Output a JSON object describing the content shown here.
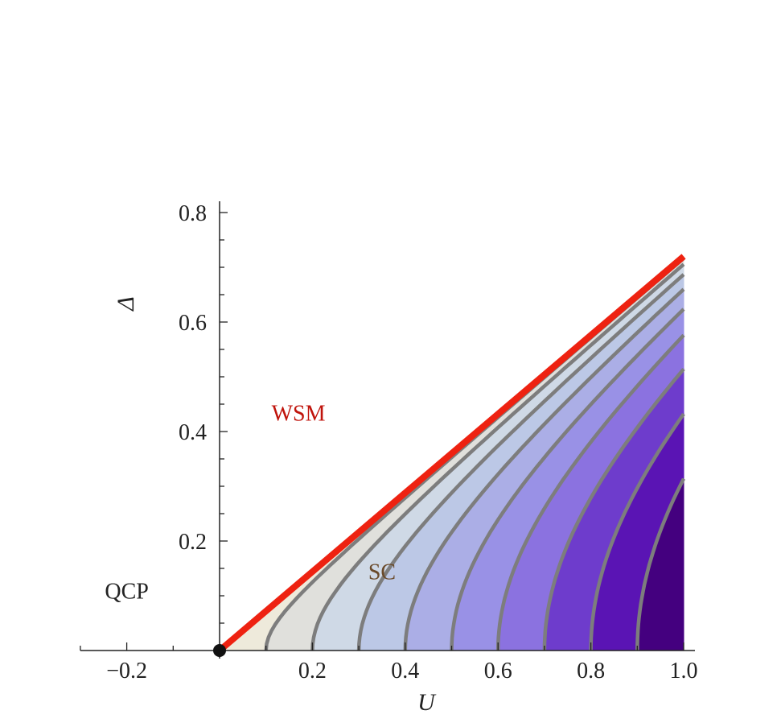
{
  "chart_data": {
    "type": "contour",
    "xlabel": "U",
    "ylabel": "Δ",
    "xlim": [
      -0.3,
      1.0
    ],
    "ylim": [
      0.0,
      0.8
    ],
    "x_ticks": [
      "−0.2",
      "0.2",
      "0.4",
      "0.6",
      "0.8",
      "1.0"
    ],
    "x_tick_values": [
      -0.2,
      0.2,
      0.4,
      0.6,
      0.8,
      1.0
    ],
    "y_ticks": [
      "0.2",
      "0.4",
      "0.6",
      "0.8"
    ],
    "y_tick_values": [
      0.2,
      0.4,
      0.6,
      0.8
    ],
    "boundary_line": {
      "x": [
        0.0,
        1.0
      ],
      "y": [
        0.0,
        0.72
      ],
      "color": "#ee2211"
    },
    "contour_levels_at_delta_zero": [
      0.1,
      0.2,
      0.3,
      0.4,
      0.5,
      0.6,
      0.7,
      0.8,
      0.9
    ],
    "fill_colors": [
      "#eeeadb",
      "#e0e0dc",
      "#cfd9e6",
      "#bcc8e6",
      "#abaee6",
      "#9991e6",
      "#8b72e0",
      "#6e3ccc",
      "#5a14b4",
      "#44007f"
    ],
    "critical_point": {
      "x": 0.0,
      "y": 0.0
    },
    "annotations": [
      {
        "text": "WSM",
        "x": 0.17,
        "y": 0.42,
        "color": "#c0140c"
      },
      {
        "text": "SC",
        "x": 0.35,
        "y": 0.13,
        "color": "#6a4a2a"
      },
      {
        "text": "QCP",
        "x": -0.2,
        "y": 0.095,
        "color": "#222222"
      }
    ]
  }
}
